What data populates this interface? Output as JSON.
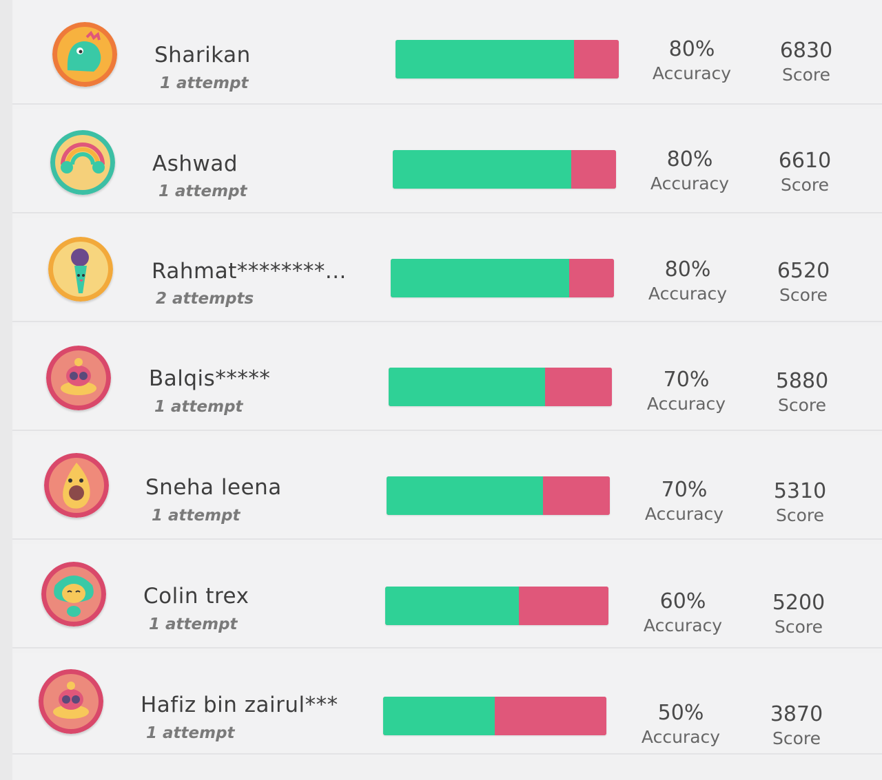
{
  "leaderboard": {
    "accuracy_label": "Accuracy",
    "score_label": "Score",
    "colors": {
      "correct": "#2fd196",
      "incorrect": "#e0577a"
    },
    "players": [
      {
        "name": "Sharikan",
        "attempts": "1 attempt",
        "accuracy": "80%",
        "accuracy_value": 0.8,
        "score": "6830",
        "avatar": "dinosaur-avatar-icon"
      },
      {
        "name": "Ashwad",
        "attempts": "1 attempt",
        "accuracy": "80%",
        "accuracy_value": 0.8,
        "score": "6610",
        "avatar": "rainbow-avatar-icon"
      },
      {
        "name": "Rahmat********...",
        "attempts": "2 attempts",
        "accuracy": "80%",
        "accuracy_value": 0.8,
        "score": "6520",
        "avatar": "microphone-avatar-icon"
      },
      {
        "name": "Balqis*****",
        "attempts": "1 attempt",
        "accuracy": "70%",
        "accuracy_value": 0.7,
        "score": "5880",
        "avatar": "crab-avatar-icon"
      },
      {
        "name": "Sneha leena",
        "attempts": "1 attempt",
        "accuracy": "70%",
        "accuracy_value": 0.7,
        "score": "5310",
        "avatar": "avocado-avatar-icon"
      },
      {
        "name": "Colin trex",
        "attempts": "1 attempt",
        "accuracy": "60%",
        "accuracy_value": 0.6,
        "score": "5200",
        "avatar": "leaf-creature-avatar-icon"
      },
      {
        "name": "Hafiz bin zairul***",
        "attempts": "1 attempt",
        "accuracy": "50%",
        "accuracy_value": 0.5,
        "score": "3870",
        "avatar": "crab-avatar-icon"
      }
    ]
  }
}
